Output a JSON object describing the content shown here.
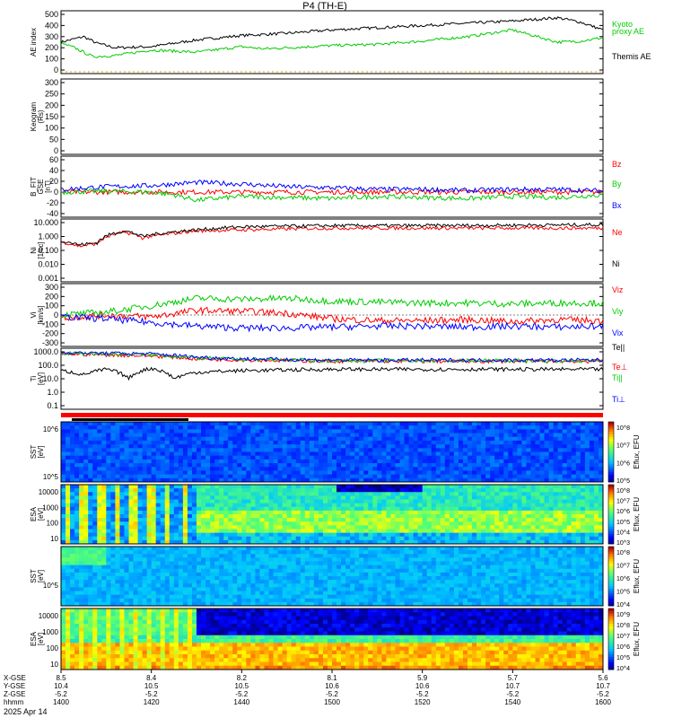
{
  "chart_data": {
    "title": "P4 (TH-E)",
    "date_label": "2025 Apr 14",
    "time_axis": {
      "row_labels": [
        "X-GSE",
        "Y-GSE",
        "Z-GSE",
        "hhmm"
      ],
      "ticks": [
        {
          "x": "8.5",
          "y": "10.4",
          "z": "-5.2",
          "t": "1400"
        },
        {
          "x": "8.4",
          "y": "10.5",
          "z": "-5.2",
          "t": "1420"
        },
        {
          "x": "8.2",
          "y": "10.5",
          "z": "-5.2",
          "t": "1440"
        },
        {
          "x": "8.1",
          "y": "10.6",
          "z": "-5.2",
          "t": "1500"
        },
        {
          "x": "5.9",
          "y": "10.6",
          "z": "-5.2",
          "t": "1520"
        },
        {
          "x": "5.7",
          "y": "10.7",
          "z": "-5.2",
          "t": "1540"
        },
        {
          "x": "5.6",
          "y": "10.7",
          "z": "-5.2",
          "t": "1600"
        }
      ]
    },
    "panels": [
      {
        "id": "ae",
        "type": "line",
        "ylabel": "AE index",
        "yticks": [
          "500",
          "400",
          "300",
          "200",
          "100",
          "0"
        ],
        "ylim": [
          0,
          500
        ],
        "series": [
          {
            "name": "Themis AE",
            "color": "#000000",
            "t": [
              0,
              5,
              8,
              12,
              20,
              30,
              40,
              50,
              60,
              70,
              80,
              90,
              100,
              110,
              115,
              120
            ],
            "values": [
              250,
              300,
              240,
              200,
              210,
              270,
              310,
              330,
              360,
              380,
              400,
              420,
              440,
              470,
              430,
              360
            ]
          },
          {
            "name": "Kyoto proxy AE",
            "color": "#00cc00",
            "t": [
              0,
              3,
              7,
              12,
              20,
              30,
              40,
              45,
              50,
              60,
              70,
              80,
              90,
              95,
              100,
              110,
              115,
              120
            ],
            "values": [
              240,
              200,
              120,
              130,
              180,
              160,
              210,
              190,
              200,
              220,
              230,
              260,
              300,
              330,
              360,
              250,
              260,
              290
            ]
          }
        ],
        "legend": [
          "Kyoto",
          "proxy AE",
          "Themis AE"
        ]
      },
      {
        "id": "kp",
        "type": "line",
        "ylabel": "Keogram",
        "ylabel2": "(Rs)",
        "yticks": [
          "300",
          "250",
          "200",
          "150",
          "100",
          "50",
          "0"
        ]
      },
      {
        "id": "b",
        "type": "line",
        "ylabel": "B_FIT",
        "ylabel2": "GSE",
        "ylabel3": "[nT]",
        "yticks": [
          "60",
          "40",
          "20",
          "0",
          "-20",
          "-40"
        ],
        "ylim": [
          -40,
          60
        ],
        "series": [
          {
            "name": "Bz",
            "color": "#ff0000",
            "t": [
              0,
              120
            ],
            "values": [
              0,
              0
            ]
          },
          {
            "name": "By",
            "color": "#00cc00",
            "t": [
              0,
              10,
              20,
              25,
              30,
              40,
              50,
              60,
              70,
              80,
              90,
              100,
              110,
              120
            ],
            "values": [
              0,
              2,
              0,
              -5,
              -15,
              -8,
              -10,
              -12,
              -8,
              -10,
              -12,
              -8,
              -10,
              -5
            ]
          },
          {
            "name": "Bx",
            "color": "#0000ff",
            "t": [
              0,
              10,
              20,
              25,
              30,
              40,
              50,
              60,
              70,
              80,
              90,
              100,
              110,
              120
            ],
            "values": [
              5,
              10,
              12,
              15,
              18,
              15,
              10,
              8,
              5,
              5,
              3,
              5,
              5,
              2
            ]
          }
        ],
        "legend": [
          "Bz",
          "By",
          "Bx"
        ]
      },
      {
        "id": "n",
        "type": "line",
        "log": true,
        "ylabel": "Ni",
        "ylabel2": "[1/cc]",
        "yticks": [
          "10.000",
          "1.000",
          "0.100",
          "0.010",
          "0.001"
        ],
        "ylim": [
          0.001,
          10
        ],
        "series": [
          {
            "name": "Ne",
            "color": "#ff0000",
            "t": [
              0,
              4,
              8,
              14,
              18,
              24,
              30,
              40,
              60,
              80,
              100,
              120
            ],
            "values": [
              0.4,
              0.2,
              0.3,
              2,
              0.8,
              1.5,
              2.5,
              3,
              4,
              4,
              4,
              4
            ]
          },
          {
            "name": "Ni",
            "color": "#000000",
            "t": [
              0,
              4,
              8,
              14,
              18,
              24,
              30,
              40,
              60,
              80,
              100,
              120
            ],
            "values": [
              0.5,
              0.25,
              0.35,
              2.5,
              1,
              2,
              3,
              5,
              6,
              6,
              6.5,
              7
            ]
          }
        ],
        "legend": [
          "Ne",
          "Ni"
        ]
      },
      {
        "id": "v",
        "type": "line",
        "ylabel": "Vi",
        "ylabel2": "[km/s]",
        "yticks": [
          "300",
          "200",
          "100",
          "0",
          "-100",
          "-200",
          "-300"
        ],
        "ylim": [
          -300,
          300
        ],
        "series": [
          {
            "name": "Viz",
            "color": "#ff0000",
            "t": [
              0,
              10,
              20,
              30,
              40,
              50,
              60,
              70,
              80,
              90,
              100,
              110,
              120
            ],
            "values": [
              -30,
              0,
              -20,
              50,
              40,
              20,
              -40,
              -60,
              -60,
              -50,
              -70,
              -50,
              -60
            ]
          },
          {
            "name": "Viy",
            "color": "#00cc00",
            "t": [
              0,
              10,
              20,
              30,
              40,
              50,
              60,
              70,
              80,
              90,
              100,
              110,
              120
            ],
            "values": [
              0,
              30,
              100,
              180,
              170,
              180,
              150,
              140,
              130,
              130,
              120,
              130,
              130
            ]
          },
          {
            "name": "Vix",
            "color": "#0000ff",
            "t": [
              0,
              10,
              20,
              30,
              40,
              50,
              60,
              70,
              80,
              90,
              100,
              110,
              120
            ],
            "values": [
              -20,
              -40,
              -80,
              -120,
              -140,
              -140,
              -130,
              -120,
              -120,
              -130,
              -120,
              -130,
              -120
            ]
          }
        ],
        "legend": [
          "Viz",
          "Viy",
          "Vix"
        ]
      },
      {
        "id": "ti",
        "type": "line",
        "log": true,
        "ylabel": "Ti",
        "ylabel2": "[eV]",
        "yticks": [
          "1000.0",
          "100.0",
          "10.0",
          "1.0",
          "0.1"
        ],
        "ylim": [
          0.1,
          1000
        ],
        "series": [
          {
            "name": "Te||",
            "color": "#000000",
            "t": [
              0,
              5,
              10,
              15,
              20,
              25,
              30,
              40,
              60,
              80,
              100,
              120
            ],
            "values": [
              40,
              20,
              50,
              10,
              60,
              10,
              30,
              40,
              50,
              50,
              50,
              50
            ]
          },
          {
            "name": "Te⊥",
            "color": "#ff0000",
            "t": [
              0,
              10,
              20,
              30,
              40,
              60,
              80,
              100,
              120
            ],
            "values": [
              700,
              600,
              500,
              300,
              250,
              200,
              200,
              200,
              200
            ]
          },
          {
            "name": "Ti||",
            "color": "#00cc00",
            "t": [
              0,
              10,
              20,
              30,
              40,
              60,
              80,
              100,
              120
            ],
            "values": [
              800,
              700,
              600,
              350,
              280,
              220,
              220,
              220,
              220
            ]
          },
          {
            "name": "Ti⊥",
            "color": "#0000ff",
            "t": [
              0,
              10,
              20,
              30,
              40,
              60,
              80,
              100,
              120
            ],
            "values": [
              900,
              800,
              700,
              400,
              300,
              240,
              240,
              240,
              240
            ]
          }
        ],
        "legend": [
          "Te||",
          "Te⊥",
          "Ti||",
          "Ti⊥"
        ]
      }
    ],
    "spectrograms": [
      {
        "id": "sst-i",
        "ylabel": "SST",
        "ylabel2": "[eV]",
        "yticks": [
          "10^6",
          "10^5"
        ],
        "cbar_label": "Eflux, EFU",
        "cbar_ticks": [
          "10^8",
          "10^7",
          "10^6",
          "10^5"
        ]
      },
      {
        "id": "esa-i",
        "ylabel": "ESA",
        "ylabel2": "[eV]",
        "yticks": [
          "10000",
          "1000",
          "100",
          "10"
        ],
        "cbar_label": "Eflux, EFU",
        "cbar_ticks": [
          "10^8",
          "10^7",
          "10^6",
          "10^5",
          "10^4",
          "10^3"
        ]
      },
      {
        "id": "sst-e",
        "ylabel": "SST",
        "ylabel2": "[eV]",
        "yticks": [
          "10^5"
        ],
        "cbar_label": "Eflux, EFU",
        "cbar_ticks": [
          "10^8",
          "10^7",
          "10^6",
          "10^5",
          "10^4"
        ]
      },
      {
        "id": "esa-e",
        "ylabel": "ESA",
        "ylabel2": "[eV]",
        "yticks": [
          "10000",
          "1000",
          "100",
          "10"
        ],
        "cbar_label": "Eflux, EFU",
        "cbar_ticks": [
          "10^9",
          "10^8",
          "10^7",
          "10^6",
          "10^5",
          "10^4"
        ]
      }
    ]
  }
}
